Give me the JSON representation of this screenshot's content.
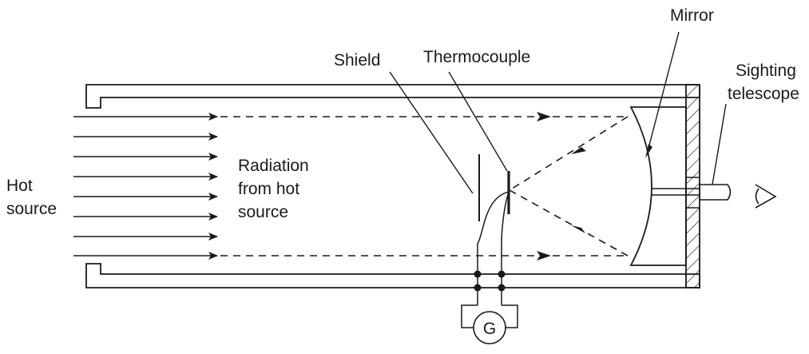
{
  "labels": {
    "mirror": "Mirror",
    "shield": "Shield",
    "thermocouple": "Thermocouple",
    "sighting_telescope_line1": "Sighting",
    "sighting_telescope_line2": "telescope",
    "hot_source_line1": "Hot",
    "hot_source_line2": "source",
    "radiation_line1": "Radiation",
    "radiation_line2": "from hot",
    "radiation_line3": "source",
    "galvanometer": "G"
  }
}
